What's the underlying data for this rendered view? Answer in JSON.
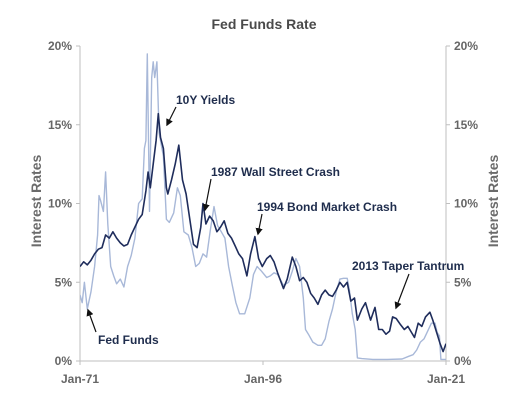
{
  "chart_data": {
    "type": "line",
    "title": "Fed Funds Rate",
    "ylabel_left": "Interest Rates",
    "ylabel_right": "Interest Rates",
    "ylim": [
      0,
      20
    ],
    "yticks": [
      "0%",
      "5%",
      "10%",
      "15%",
      "20%"
    ],
    "xlim": [
      1971,
      2021
    ],
    "xticks": [
      {
        "label": "Jan-71",
        "x": 1971
      },
      {
        "label": "Jan-96",
        "x": 1996
      },
      {
        "label": "Jan-21",
        "x": 2021
      }
    ],
    "grid": false,
    "colors": {
      "fed_funds": "#a8b8d8",
      "ten_year": "#1f2d5c",
      "text": "#1f2d4d"
    },
    "series": [
      {
        "name": "Fed Funds",
        "x": [
          1971.0,
          1971.3,
          1971.6,
          1972.0,
          1972.5,
          1973.0,
          1973.4,
          1973.6,
          1973.8,
          1974.2,
          1974.5,
          1974.8,
          1975.2,
          1975.6,
          1976.0,
          1976.5,
          1977.0,
          1977.5,
          1978.0,
          1978.5,
          1979.0,
          1979.5,
          1979.8,
          1980.0,
          1980.2,
          1980.5,
          1980.8,
          1981.0,
          1981.2,
          1981.5,
          1981.8,
          1982.0,
          1982.4,
          1982.8,
          1983.2,
          1983.8,
          1984.3,
          1984.7,
          1985.2,
          1985.8,
          1986.3,
          1986.8,
          1987.3,
          1987.8,
          1988.3,
          1988.8,
          1989.3,
          1989.8,
          1990.3,
          1990.8,
          1991.3,
          1991.8,
          1992.3,
          1992.8,
          1993.5,
          1994.2,
          1994.7,
          1995.2,
          1995.8,
          1996.5,
          1997.0,
          1997.5,
          1998.0,
          1998.8,
          1999.5,
          2000.0,
          2000.5,
          2001.0,
          2001.5,
          2001.8,
          2002.2,
          2002.8,
          2003.5,
          2004.0,
          2004.5,
          2005.0,
          2005.5,
          2006.0,
          2006.5,
          2007.0,
          2007.5,
          2007.8,
          2008.2,
          2008.6,
          2008.9,
          2009.5,
          2011.0,
          2013.0,
          2015.0,
          2015.9,
          2016.5,
          2017.0,
          2017.5,
          2018.0,
          2018.5,
          2019.0,
          2019.5,
          2019.8,
          2020.1,
          2020.3,
          2020.6,
          2021.0
        ],
        "values": [
          4.2,
          3.7,
          5.0,
          3.3,
          4.4,
          6.0,
          8.0,
          10.5,
          10.2,
          9.5,
          12.0,
          8.7,
          6.0,
          5.4,
          4.9,
          5.2,
          4.7,
          6.0,
          6.7,
          7.8,
          10.0,
          10.3,
          13.5,
          14.0,
          19.5,
          9.5,
          18.0,
          19.0,
          18.0,
          19.0,
          14.5,
          14.0,
          13.0,
          9.0,
          8.8,
          9.4,
          11.0,
          10.5,
          8.2,
          8.0,
          7.2,
          6.0,
          6.2,
          6.8,
          6.6,
          8.3,
          9.8,
          8.6,
          8.2,
          7.8,
          6.0,
          4.8,
          3.7,
          3.0,
          3.0,
          4.0,
          5.5,
          6.0,
          5.7,
          5.3,
          5.4,
          5.6,
          5.5,
          4.8,
          5.0,
          5.7,
          6.5,
          6.0,
          4.0,
          2.0,
          1.7,
          1.2,
          1.0,
          1.0,
          1.4,
          2.5,
          3.3,
          4.4,
          5.2,
          5.25,
          5.25,
          4.5,
          3.0,
          2.0,
          0.2,
          0.15,
          0.1,
          0.1,
          0.13,
          0.3,
          0.4,
          0.7,
          1.2,
          1.4,
          1.9,
          2.4,
          2.4,
          1.8,
          1.6,
          0.1,
          0.1,
          0.1
        ]
      },
      {
        "name": "10Y Yields",
        "x": [
          1971.0,
          1971.5,
          1972.0,
          1972.5,
          1973.0,
          1973.5,
          1974.0,
          1974.5,
          1975.0,
          1975.5,
          1976.0,
          1976.5,
          1977.0,
          1977.5,
          1978.0,
          1978.5,
          1979.0,
          1979.5,
          1980.0,
          1980.3,
          1980.6,
          1981.0,
          1981.4,
          1981.7,
          1982.0,
          1982.4,
          1982.8,
          1983.0,
          1983.5,
          1984.0,
          1984.5,
          1985.0,
          1985.5,
          1986.0,
          1986.5,
          1987.0,
          1987.5,
          1987.8,
          1988.2,
          1988.7,
          1989.2,
          1989.7,
          1990.2,
          1990.7,
          1991.2,
          1991.7,
          1992.2,
          1992.7,
          1993.2,
          1993.8,
          1994.3,
          1994.9,
          1995.4,
          1995.9,
          1996.5,
          1997.0,
          1997.5,
          1998.0,
          1998.8,
          1999.3,
          2000.0,
          2000.5,
          2001.0,
          2001.5,
          2002.0,
          2002.5,
          2003.0,
          2003.5,
          2004.0,
          2004.5,
          2005.0,
          2005.5,
          2006.0,
          2006.5,
          2007.0,
          2007.5,
          2008.0,
          2008.5,
          2008.9,
          2009.5,
          2010.0,
          2010.7,
          2011.3,
          2011.8,
          2012.3,
          2012.8,
          2013.3,
          2013.7,
          2014.2,
          2014.8,
          2015.3,
          2015.8,
          2016.3,
          2016.7,
          2017.2,
          2017.7,
          2018.2,
          2018.8,
          2019.2,
          2019.8,
          2020.2,
          2020.6,
          2021.0
        ],
        "values": [
          6.0,
          6.3,
          6.1,
          6.4,
          6.8,
          7.1,
          7.2,
          8.0,
          7.8,
          8.2,
          7.8,
          7.5,
          7.3,
          7.4,
          8.0,
          8.5,
          9.0,
          9.3,
          10.8,
          12.0,
          11.0,
          12.5,
          14.0,
          15.7,
          14.2,
          13.5,
          11.0,
          10.6,
          11.5,
          12.5,
          13.7,
          11.5,
          10.6,
          9.0,
          7.4,
          7.2,
          8.5,
          10.0,
          8.7,
          9.2,
          8.9,
          8.2,
          8.5,
          8.9,
          8.1,
          7.8,
          7.3,
          6.8,
          6.5,
          5.4,
          6.8,
          7.9,
          6.5,
          6.0,
          6.5,
          6.7,
          6.3,
          5.6,
          4.6,
          5.2,
          6.6,
          6.0,
          5.1,
          5.3,
          5.0,
          4.3,
          4.0,
          3.6,
          4.2,
          4.5,
          4.2,
          4.1,
          4.5,
          5.0,
          4.7,
          5.0,
          3.8,
          4.0,
          2.6,
          3.3,
          3.7,
          2.6,
          3.4,
          2.0,
          2.0,
          1.7,
          1.9,
          2.8,
          2.7,
          2.3,
          2.0,
          2.2,
          1.8,
          1.5,
          2.4,
          2.2,
          2.8,
          3.1,
          2.6,
          1.7,
          1.1,
          0.6,
          1.1
        ]
      }
    ],
    "annotations": [
      {
        "label": "10Y Yields"
      },
      {
        "label": "1987 Wall Street Crash"
      },
      {
        "label": "1994 Bond Market Crash"
      },
      {
        "label": "2013  Taper Tantrum"
      },
      {
        "label": "Fed Funds"
      }
    ]
  }
}
